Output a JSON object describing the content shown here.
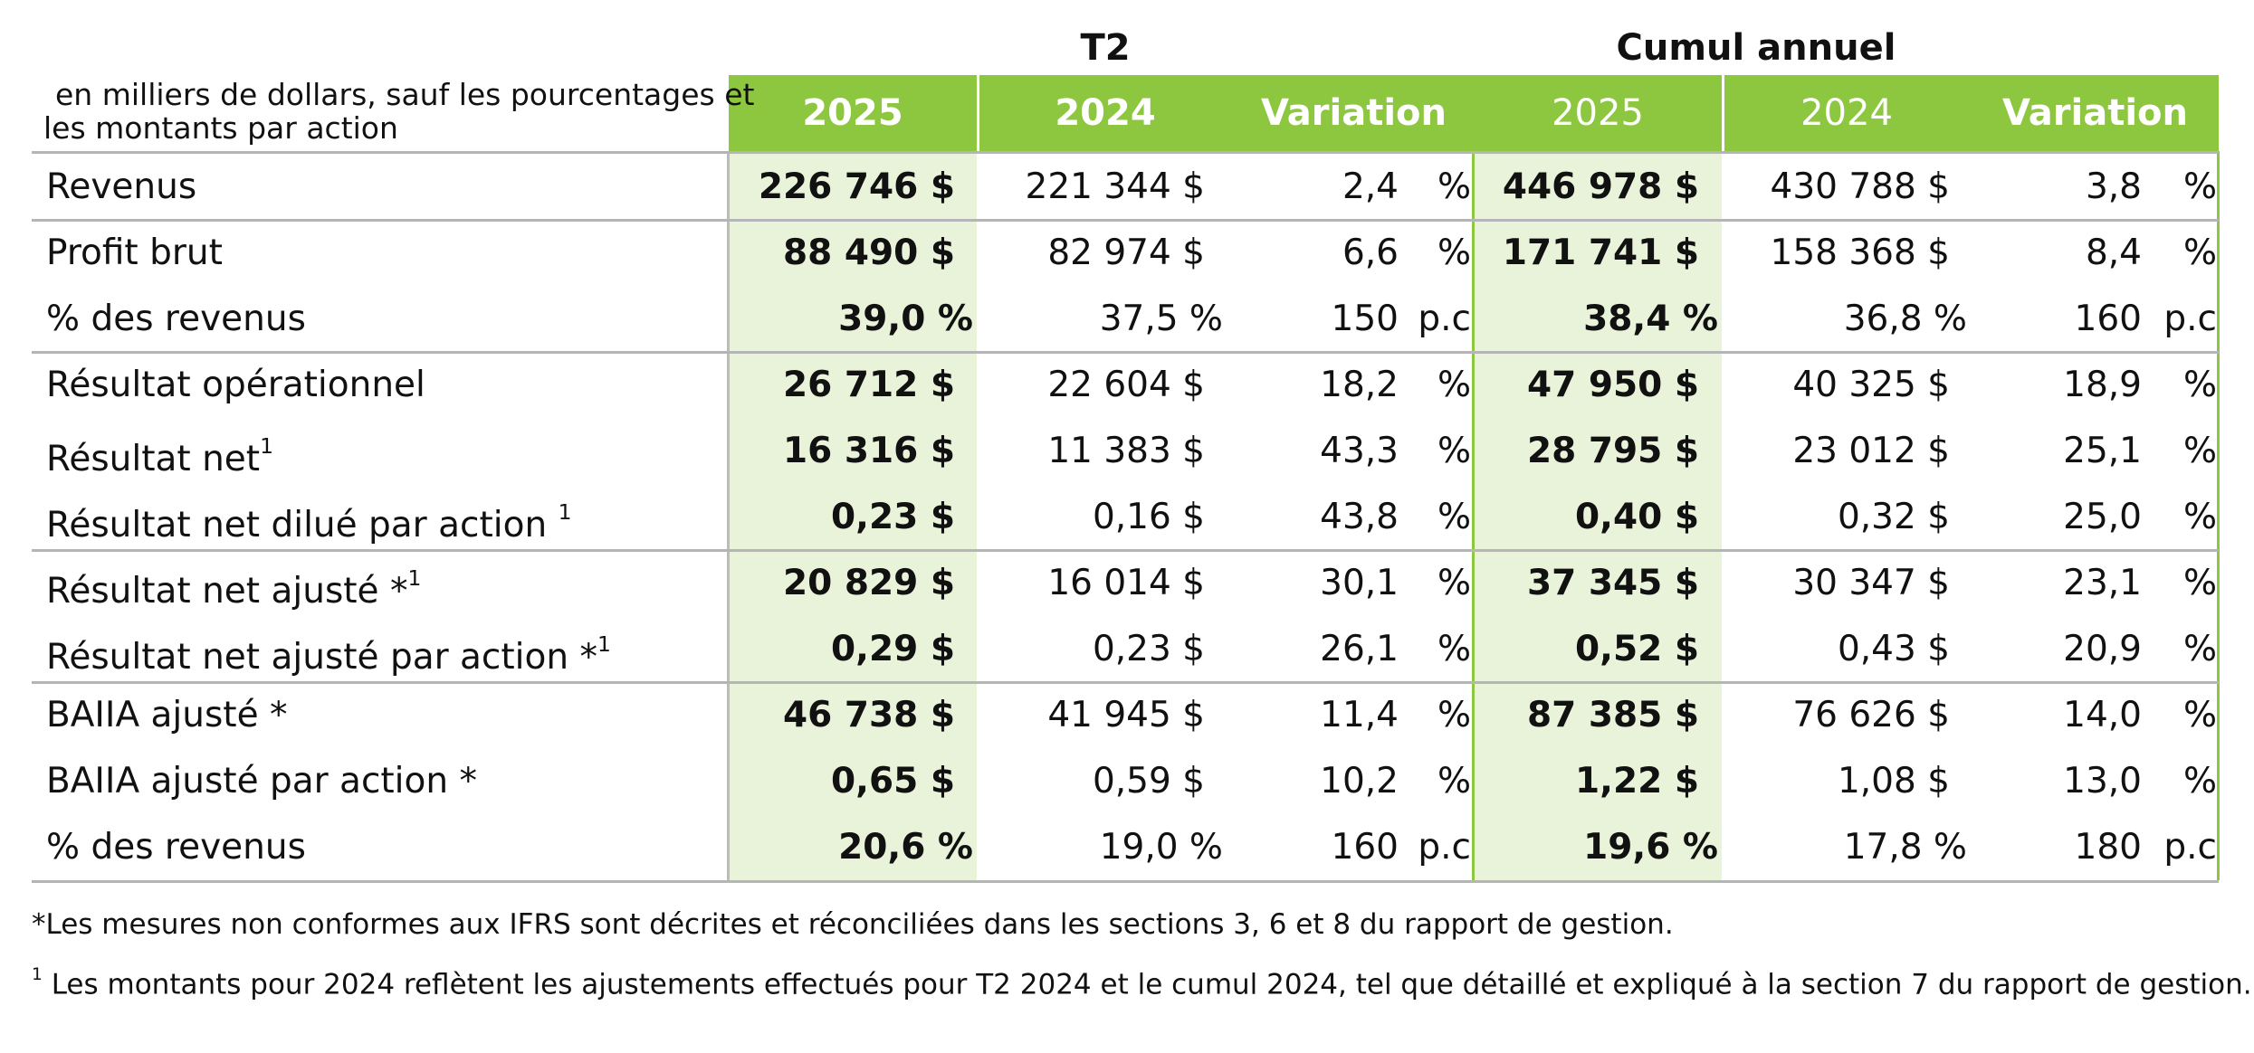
{
  "header": {
    "groups": [
      "T2",
      "Cumul annuel"
    ],
    "note": [
      "en milliers de dollars, sauf les pourcentages et",
      "les montants par action"
    ],
    "columns": [
      "2025",
      "2024",
      "Variation",
      "2025",
      "2024",
      "Variation"
    ]
  },
  "table": {
    "rows": [
      {
        "label": "Revenus",
        "cells": [
          "226 746 $",
          "221 344 $",
          "2,4",
          "%",
          "446 978 $",
          "430 788 $",
          "3,8",
          "%"
        ]
      },
      {
        "label": "Profit brut",
        "cells": [
          "88 490 $",
          "82 974 $",
          "6,6",
          "%",
          "171 741 $",
          "158 368 $",
          "8,4",
          "%"
        ]
      },
      {
        "label": "% des revenus",
        "cells": [
          "39,0 %",
          "37,5 %",
          "150",
          "p.c",
          "38,4 %",
          "36,8 %",
          "160",
          "p.c"
        ]
      },
      {
        "label": "Résultat opérationnel",
        "cells": [
          "26 712 $",
          "22 604 $",
          "18,2",
          "%",
          "47 950 $",
          "40 325 $",
          "18,9",
          "%"
        ]
      },
      {
        "label": "Résultat net",
        "sup": "1",
        "cells": [
          "16 316 $",
          "11 383 $",
          "43,3",
          "%",
          "28 795 $",
          "23 012 $",
          "25,1",
          "%"
        ]
      },
      {
        "label": "Résultat net dilué par action ",
        "sup": "1",
        "cells": [
          "0,23 $",
          "0,16 $",
          "43,8",
          "%",
          "0,40 $",
          "0,32 $",
          "25,0",
          "%"
        ]
      },
      {
        "label": "Résultat net ajusté *",
        "sup": "1",
        "cells": [
          "20 829 $",
          "16 014 $",
          "30,1",
          "%",
          "37 345 $",
          "30 347 $",
          "23,1",
          "%"
        ]
      },
      {
        "label": "Résultat net ajusté par action *",
        "sup": "1",
        "cells": [
          "0,29 $",
          "0,23 $",
          "26,1",
          "%",
          "0,52 $",
          "0,43 $",
          "20,9",
          "%"
        ]
      },
      {
        "label": "BAIIA ajusté *",
        "cells": [
          "46 738 $",
          "41 945 $",
          "11,4",
          "%",
          "87 385 $",
          "76 626 $",
          "14,0",
          "%"
        ]
      },
      {
        "label": "BAIIA ajusté par action *",
        "cells": [
          "0,65 $",
          "0,59 $",
          "10,2",
          "%",
          "1,22 $",
          "1,08 $",
          "13,0",
          "%"
        ]
      },
      {
        "label": "% des revenus",
        "cells": [
          "20,6 %",
          "19,0 %",
          "160",
          "p.c",
          "19,6 %",
          "17,8 %",
          "180",
          "p.c"
        ]
      }
    ]
  },
  "footnotes": [
    {
      "text": "*Les mesures non conformes aux IFRS sont décrites et réconciliées dans les sections 3, 6 et 8 du rapport de gestion."
    },
    {
      "sup": "1",
      "text": " Les montants pour 2024 reflètent les ajustements effectués pour T2 2024 et le cumul 2024, tel que détaillé et expliqué à la section 7 du rapport de gestion."
    }
  ]
}
